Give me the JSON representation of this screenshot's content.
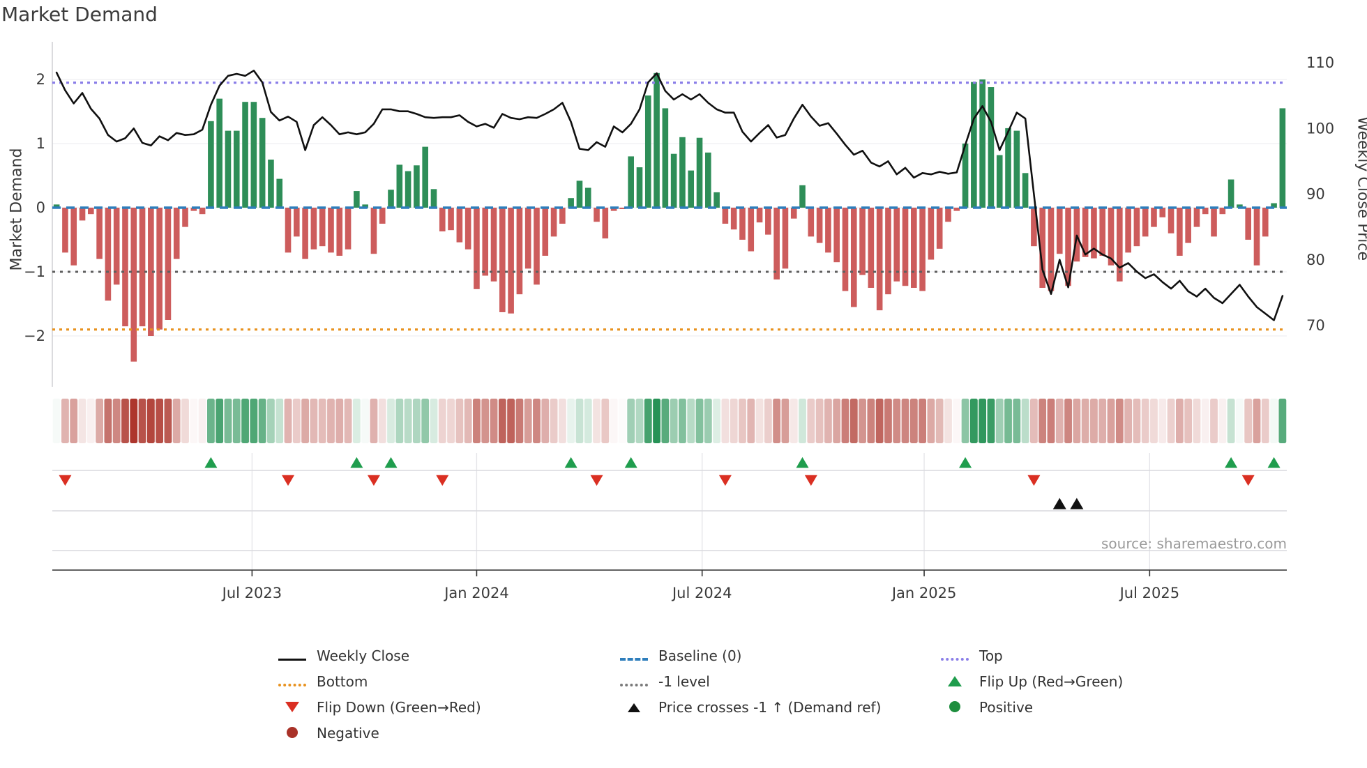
{
  "title": "Market Demand",
  "source": "source: sharemaestro.com",
  "axes": {
    "left_label": "Market Demand",
    "right_label": "Weekly Close Price",
    "left_ticks": [
      {
        "v": 2,
        "t": "2"
      },
      {
        "v": 1,
        "t": "1"
      },
      {
        "v": 0,
        "t": "0"
      },
      {
        "v": -1,
        "t": "−1"
      },
      {
        "v": -2,
        "t": "−2"
      }
    ],
    "right_ticks": [
      {
        "v": 110,
        "t": "110"
      },
      {
        "v": 100,
        "t": "100"
      },
      {
        "v": 90,
        "t": "90"
      },
      {
        "v": 80,
        "t": "80"
      },
      {
        "v": 70,
        "t": "70"
      }
    ],
    "x_ticks": [
      {
        "week": 22.8,
        "t": "Jul 2023"
      },
      {
        "week": 49.0,
        "t": "Jan 2024"
      },
      {
        "week": 75.3,
        "t": "Jul 2024"
      },
      {
        "week": 101.2,
        "t": "Jan 2025"
      },
      {
        "week": 127.5,
        "t": "Jul 2025"
      }
    ]
  },
  "chart_data": {
    "type": "bar",
    "title": "Market Demand",
    "xlabel": "",
    "ylabel_left": "Market Demand",
    "ylabel_right": "Weekly Close Price",
    "ylim_left": [
      -2.6,
      2.6
    ],
    "ylim_right": [
      70,
      110
    ],
    "grid": "horizontal-light",
    "legend_position": "bottom",
    "series": [
      {
        "name": "Market Demand",
        "type": "bar",
        "values": [
          0.05,
          -0.7,
          -0.9,
          -0.2,
          -0.1,
          -0.8,
          -1.45,
          -1.2,
          -1.85,
          -2.4,
          -1.85,
          -2.0,
          -1.9,
          -1.75,
          -0.8,
          -0.3,
          -0.05,
          -0.1,
          1.35,
          1.7,
          1.2,
          1.2,
          1.65,
          1.65,
          1.4,
          0.75,
          0.45,
          -0.7,
          -0.45,
          -0.8,
          -0.65,
          -0.6,
          -0.7,
          -0.75,
          -0.65,
          0.26,
          0.05,
          -0.72,
          -0.25,
          0.28,
          0.67,
          0.57,
          0.66,
          0.95,
          0.29,
          -0.37,
          -0.35,
          -0.54,
          -0.65,
          -1.27,
          -1.06,
          -1.15,
          -1.63,
          -1.65,
          -1.35,
          -0.95,
          -1.2,
          -0.75,
          -0.45,
          -0.25,
          0.15,
          0.42,
          0.31,
          -0.22,
          -0.48,
          -0.05,
          -0.02,
          0.8,
          0.63,
          1.75,
          2.1,
          1.55,
          0.84,
          1.1,
          0.58,
          1.09,
          0.86,
          0.24,
          -0.25,
          -0.34,
          -0.5,
          -0.68,
          -0.23,
          -0.42,
          -1.12,
          -0.95,
          -0.17,
          0.35,
          -0.45,
          -0.55,
          -0.7,
          -0.85,
          -1.3,
          -1.55,
          -1.05,
          -1.25,
          -1.6,
          -1.35,
          -1.15,
          -1.22,
          -1.25,
          -1.3,
          -0.81,
          -0.64,
          -0.22,
          -0.05,
          1.0,
          1.96,
          2.0,
          1.88,
          0.82,
          1.24,
          1.2,
          0.54,
          -0.6,
          -1.25,
          -1.3,
          -0.72,
          -1.22,
          -0.84,
          -0.77,
          -0.79,
          -0.75,
          -0.9,
          -1.15,
          -0.7,
          -0.6,
          -0.45,
          -0.3,
          -0.15,
          -0.4,
          -0.75,
          -0.55,
          -0.3,
          -0.1,
          -0.45,
          -0.1,
          0.44,
          0.05,
          -0.5,
          -0.9,
          -0.45,
          0.07,
          1.55
        ]
      },
      {
        "name": "Weekly Close",
        "type": "line",
        "values": [
          108.5,
          105.8,
          103.8,
          105.4,
          103.0,
          101.5,
          99.0,
          98.0,
          98.5,
          100.0,
          97.8,
          97.4,
          98.8,
          98.2,
          99.3,
          99.0,
          99.1,
          99.8,
          103.6,
          106.5,
          108.0,
          108.3,
          108.0,
          108.8,
          107.0,
          102.5,
          101.2,
          101.8,
          101.0,
          96.7,
          100.5,
          101.7,
          100.5,
          99.1,
          99.4,
          99.1,
          99.4,
          100.7,
          102.9,
          102.9,
          102.6,
          102.6,
          102.2,
          101.7,
          101.6,
          101.7,
          101.7,
          102.0,
          101.0,
          100.3,
          100.7,
          100.1,
          102.2,
          101.6,
          101.4,
          101.7,
          101.6,
          102.2,
          102.9,
          103.9,
          101.0,
          96.9,
          96.7,
          97.9,
          97.2,
          100.3,
          99.4,
          100.7,
          102.9,
          107.0,
          108.4,
          105.7,
          104.4,
          105.2,
          104.4,
          105.2,
          103.9,
          102.9,
          102.4,
          102.4,
          99.5,
          98.0,
          99.3,
          100.5,
          98.6,
          99.0,
          101.5,
          103.6,
          101.8,
          100.4,
          100.8,
          99.2,
          97.5,
          96.0,
          96.6,
          94.8,
          94.2,
          95.0,
          93.0,
          94.0,
          92.5,
          93.2,
          93.0,
          93.4,
          93.1,
          93.3,
          97.5,
          101.5,
          103.4,
          101.0,
          96.7,
          99.5,
          102.4,
          101.5,
          90.0,
          78.5,
          74.8,
          80.0,
          75.8,
          83.7,
          80.8,
          81.7,
          80.8,
          80.2,
          78.8,
          79.5,
          78.2,
          77.2,
          77.8,
          76.6,
          75.6,
          76.8,
          75.2,
          74.4,
          75.6,
          74.2,
          73.4,
          74.8,
          76.2,
          74.4,
          72.8,
          71.8,
          70.8,
          74.5
        ]
      }
    ],
    "ref_lines": {
      "top": 1.95,
      "baseline": 0,
      "minus1": -1,
      "bottom": -1.9
    },
    "events": {
      "flip_up_weeks": [
        18,
        35,
        39,
        60,
        67,
        87,
        106,
        137,
        142
      ],
      "flip_down_weeks": [
        1,
        27,
        37,
        45,
        63,
        78,
        88,
        114,
        139
      ],
      "price_cross_up_weeks": [
        117,
        119
      ]
    },
    "heatmap": "same demand values rendered as red-green intensity strip"
  },
  "legend": {
    "columns": [
      [
        {
          "marker": "line-black",
          "label": "Weekly Close"
        },
        {
          "marker": "dot-orange",
          "label": "Bottom"
        },
        {
          "marker": "tri-down-red",
          "label": "Flip Down (Green→Red)"
        },
        {
          "marker": "circle-darkred",
          "label": "Negative"
        }
      ],
      [
        {
          "marker": "dash-blue",
          "label": "Baseline (0)"
        },
        {
          "marker": "dot-gray",
          "label": "-1 level"
        },
        {
          "marker": "tri-up-black",
          "label": "Price crosses -1 ↑ (Demand ref)"
        }
      ],
      [
        {
          "marker": "dot-purple",
          "label": "Top"
        },
        {
          "marker": "tri-up-green",
          "label": "Flip Up (Red→Green)"
        },
        {
          "marker": "circle-green",
          "label": "Positive"
        }
      ]
    ]
  },
  "colors": {
    "bar_positive": "#2e8e58",
    "bar_negative": "#cd5c5c",
    "price_line": "#101010",
    "baseline": "#2e7ebc",
    "top_line": "#8a7ee8",
    "bottom_line": "#e8921f",
    "minus1_line": "#5f5f5f",
    "flip_up": "#1f9d4d",
    "flip_down": "#da2f22",
    "price_cross": "#111111",
    "heat_positive": "#1e8e4f",
    "heat_negative": "#ad362d",
    "grid_light": "#efeff2",
    "panel_grid": "#d9d9de",
    "spine": "#cfcfd4",
    "tick_text": "#3a3a3a"
  }
}
